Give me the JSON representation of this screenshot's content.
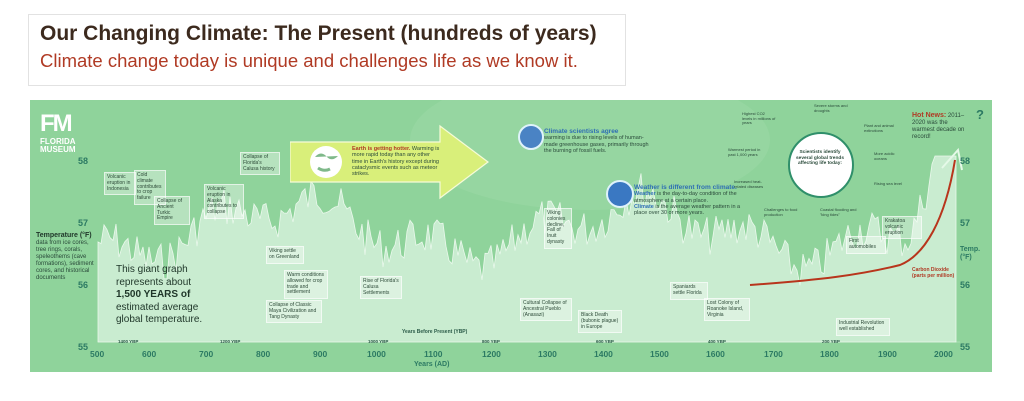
{
  "header": {
    "title": "Our Changing Climate: The Present (hundreds of years)",
    "subtitle": "Climate change today is unique and challenges life as we know it."
  },
  "museum": {
    "logo": "FM",
    "name_line1": "FLORIDA",
    "name_line2": "MUSEUM"
  },
  "left_axis": {
    "label_title": "Temperature (°F)",
    "label_body": "data from ice cores, tree rings, corals, speleothems (cave formations), sediment cores, and historical documents",
    "ticks": [
      "58",
      "57",
      "56",
      "55"
    ]
  },
  "right_axis": {
    "label": "Temp. (°F)",
    "ticks": [
      "58",
      "57",
      "56",
      "55"
    ]
  },
  "x_axis": {
    "title": "Years (AD)",
    "ticks": [
      "500",
      "600",
      "700",
      "800",
      "900",
      "1000",
      "1100",
      "1200",
      "1300",
      "1400",
      "1500",
      "1600",
      "1700",
      "1800",
      "1900",
      "2000"
    ],
    "ybp_title": "Years Before Present (YBP)",
    "ybp_ticks": [
      "1400 YBP",
      "1200 YBP",
      "1000 YBP",
      "800 YBP",
      "600 YBP",
      "400 YBP",
      "200 YBP"
    ]
  },
  "big_note": {
    "line1": "This giant graph",
    "line2": "represents about",
    "line3": "1,500 YEARS of",
    "line4": "estimated average",
    "line5": "global temperature."
  },
  "earth_arrow": {
    "bold": "Earth is getting hotter.",
    "text": "Warming is more rapid today than any other time in Earth's history except during cataclysmic events such as meteor strikes."
  },
  "scientists": {
    "title": "Climate scientists agree",
    "text": "warming is due to rising levels of human-made greenhouse gases, primarily through the burning of fossil fuels."
  },
  "weather": {
    "title": "Weather is different from climate.",
    "line1a": "Weather",
    "line1b": " is the day-to-day condition of the atmosphere at a certain place.",
    "line2a": "Climate",
    "line2b": " is the average weather pattern in a place over 30 or more years."
  },
  "trends": {
    "center": "Scientists identify several global trends affecting life today:",
    "items": [
      "Highest CO2 levels in millions of years",
      "Severe storms and droughts",
      "Plant and animal extinctions",
      "Warmest period in past 1,000 years",
      "More acidic oceans",
      "Increased heat-related diseases",
      "Rising sea level",
      "Challenges to food production",
      "Coastal flooding and \"king tides\""
    ]
  },
  "hot_news": {
    "title": "Hot News:",
    "text": "2011–2020 was the warmest decade on record!",
    "mark": "?"
  },
  "co2": {
    "label": "Carbon Dioxide",
    "unit": "(parts per million)"
  },
  "callouts": [
    "Volcanic eruption in Indonesia",
    "Cold climate contributes to crop failure",
    "Collapse of Ancient Turkic Empire",
    "Volcanic eruption in Alaska contributes to collapse",
    "Collapse of Florida's Calusa history",
    "Viking settle on Greenland",
    "Warm conditions allowed for crop trade and settlement",
    "Collapse of Classic Maya Civilization and Tang Dynasty",
    "Rise of Florida's Calusa Settlements",
    "Cultural Collapse of Ancestral Pueblo (Anasazi)",
    "Black Death (bubonic plague) in Europe",
    "Viking colonies decline, Fall of Inuit dynasty",
    "Spaniards settle Florida",
    "Lost Colony of Roanoke Island, Virginia",
    "Industrial Revolution well established",
    "First automobiles",
    "Krakatoa volcanic eruption"
  ]
}
